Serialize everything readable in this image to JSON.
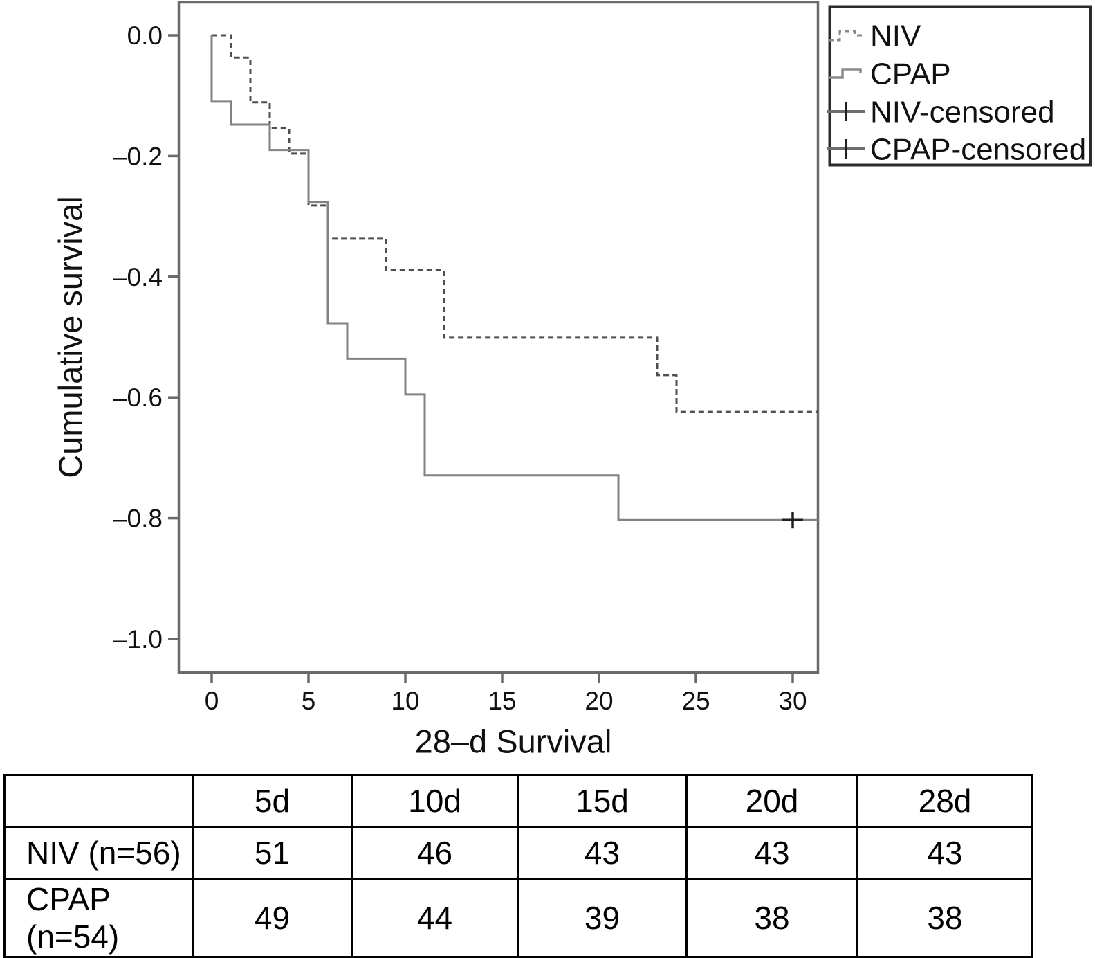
{
  "chart": {
    "y_axis": {
      "title": "Cumulative survival",
      "ticks": [
        {
          "label": "0.0",
          "v": 0.0
        },
        {
          "label": "–0.2",
          "v": -0.2
        },
        {
          "label": "–0.4",
          "v": -0.4
        },
        {
          "label": "–0.6",
          "v": -0.6
        },
        {
          "label": "–0.8",
          "v": -0.8
        },
        {
          "label": "–1.0",
          "v": -1.0
        }
      ]
    },
    "x_axis": {
      "title": "28–d Survival",
      "ticks": [
        {
          "label": "0",
          "v": 0
        },
        {
          "label": "5",
          "v": 5
        },
        {
          "label": "10",
          "v": 10
        },
        {
          "label": "15",
          "v": 15
        },
        {
          "label": "20",
          "v": 20
        },
        {
          "label": "25",
          "v": 25
        },
        {
          "label": "30",
          "v": 30
        }
      ]
    },
    "legend": {
      "items": [
        {
          "label": "NIV"
        },
        {
          "label": "CPAP"
        },
        {
          "label": "NIV-censored"
        },
        {
          "label": "CPAP-censored"
        }
      ]
    },
    "colors": {
      "niv_line": "#4f4f4f",
      "cpap_line": "#828282",
      "censor_mark": "#1f1f1f",
      "axis": "#6a6a6a",
      "table_border": "#000000"
    }
  },
  "chart_data": {
    "type": "line",
    "subtype": "kaplan-meier-step",
    "title": "",
    "xlabel": "28–d Survival",
    "ylabel": "Cumulative survival",
    "xlim": [
      0,
      31.3
    ],
    "ylim": [
      -1.0,
      0.0
    ],
    "x_ticks": [
      0,
      5,
      10,
      15,
      20,
      25,
      30
    ],
    "y_ticks": [
      0.0,
      -0.2,
      -0.4,
      -0.6,
      -0.8,
      -1.0
    ],
    "grid": false,
    "legend_position": "outside-top-right",
    "series": [
      {
        "name": "NIV",
        "style": "dashed",
        "color": "#4f4f4f",
        "start": [
          0,
          0
        ],
        "steps": [
          [
            1,
            -0.037
          ],
          [
            2,
            -0.111
          ],
          [
            3,
            -0.154
          ],
          [
            4,
            -0.196
          ],
          [
            5,
            -0.282
          ],
          [
            6,
            -0.337
          ],
          [
            9,
            -0.389
          ],
          [
            12,
            -0.501
          ],
          [
            23,
            -0.563
          ],
          [
            24,
            -0.624
          ]
        ],
        "end_x": 31.3
      },
      {
        "name": "CPAP",
        "style": "solid",
        "color": "#828282",
        "start": [
          0,
          0
        ],
        "steps": [
          [
            0,
            -0.11
          ],
          [
            1,
            -0.148
          ],
          [
            3,
            -0.19
          ],
          [
            5,
            -0.276
          ],
          [
            6,
            -0.477
          ],
          [
            7,
            -0.536
          ],
          [
            10,
            -0.595
          ],
          [
            11,
            -0.729
          ],
          [
            21,
            -0.803
          ]
        ],
        "end_x": 31.3
      }
    ],
    "censored": [
      {
        "series": "CPAP",
        "x": 30,
        "y": -0.803
      }
    ]
  },
  "table": {
    "columns": [
      "",
      "5d",
      "10d",
      "15d",
      "20d",
      "28d"
    ],
    "rows": [
      {
        "label": "NIV (n=56)",
        "values": [
          "51",
          "46",
          "43",
          "43",
          "43"
        ]
      },
      {
        "label": "CPAP (n=54)",
        "values": [
          "49",
          "44",
          "39",
          "38",
          "38"
        ]
      }
    ]
  }
}
